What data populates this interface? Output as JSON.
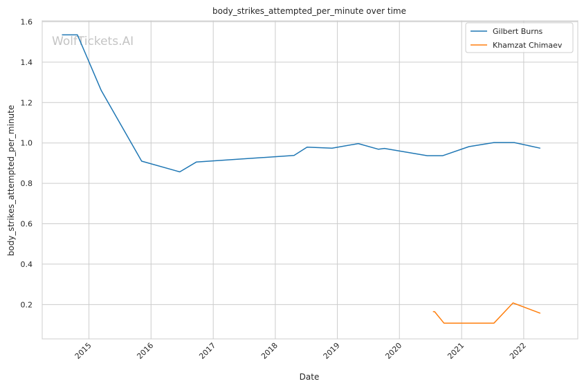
{
  "chart_data": {
    "type": "line",
    "title": "body_strikes_attempted_per_minute over time",
    "xlabel": "Date",
    "ylabel": "body_strikes_attempted_per_minute",
    "watermark": "WolfTickets.AI",
    "xlim": [
      "2014-04-01",
      "2022-11-15"
    ],
    "ylim": [
      0.03,
      1.605
    ],
    "x_ticks": [
      "2015",
      "2016",
      "2017",
      "2018",
      "2019",
      "2020",
      "2021",
      "2022"
    ],
    "y_ticks": [
      "0.2",
      "0.4",
      "0.6",
      "0.8",
      "1.0",
      "1.2",
      "1.4",
      "1.6"
    ],
    "y_tick_values": [
      0.2,
      0.4,
      0.6,
      0.8,
      1.0,
      1.2,
      1.4,
      1.6
    ],
    "grid": true,
    "legend_position": "top-right",
    "colors": {
      "grid": "#cccccc",
      "axes": "#cccccc",
      "text": "#262626"
    },
    "series": [
      {
        "name": "Gilbert Burns",
        "color": "#1f77b4",
        "points": [
          {
            "x": "2014-07-26",
            "y": 1.535
          },
          {
            "x": "2014-10-25",
            "y": 1.535
          },
          {
            "x": "2015-03-14",
            "y": 1.26
          },
          {
            "x": "2015-11-07",
            "y": 0.91
          },
          {
            "x": "2016-06-18",
            "y": 0.857
          },
          {
            "x": "2016-09-24",
            "y": 0.906
          },
          {
            "x": "2018-04-21",
            "y": 0.938
          },
          {
            "x": "2018-07-07",
            "y": 0.979
          },
          {
            "x": "2018-12-01",
            "y": 0.974
          },
          {
            "x": "2019-05-04",
            "y": 0.997
          },
          {
            "x": "2019-08-31",
            "y": 0.969
          },
          {
            "x": "2019-10-05",
            "y": 0.973
          },
          {
            "x": "2020-06-13",
            "y": 0.937
          },
          {
            "x": "2020-09-12",
            "y": 0.937
          },
          {
            "x": "2021-02-13",
            "y": 0.982
          },
          {
            "x": "2021-07-10",
            "y": 1.002
          },
          {
            "x": "2021-11-06",
            "y": 1.002
          },
          {
            "x": "2022-04-09",
            "y": 0.974
          }
        ]
      },
      {
        "name": "Khamzat Chimaev",
        "color": "#ff7f0e",
        "points": [
          {
            "x": "2020-07-16",
            "y": 0.165
          },
          {
            "x": "2020-07-26",
            "y": 0.165
          },
          {
            "x": "2020-09-19",
            "y": 0.108
          },
          {
            "x": "2021-07-10",
            "y": 0.108
          },
          {
            "x": "2021-10-30",
            "y": 0.208
          },
          {
            "x": "2022-04-09",
            "y": 0.157
          }
        ]
      }
    ]
  }
}
